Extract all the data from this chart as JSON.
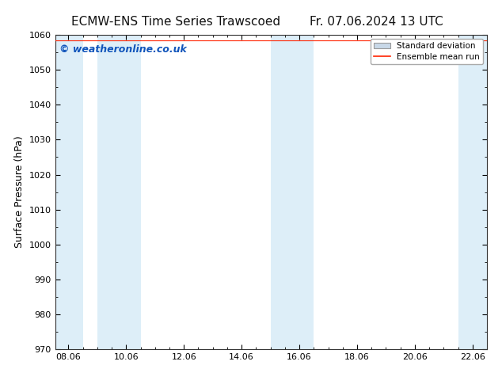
{
  "title_left": "ECMW-ENS Time Series Trawscoed",
  "title_right": "Fr. 07.06.2024 13 UTC",
  "ylabel": "Surface Pressure (hPa)",
  "ylim": [
    970,
    1060
  ],
  "yticks": [
    970,
    980,
    990,
    1000,
    1010,
    1020,
    1030,
    1040,
    1050,
    1060
  ],
  "xlim_days": [
    7.541666,
    22.5
  ],
  "xtick_labels": [
    "08.06",
    "10.06",
    "12.06",
    "14.06",
    "16.06",
    "18.06",
    "20.06",
    "22.06"
  ],
  "xtick_values": [
    8.0,
    10.0,
    12.0,
    14.0,
    16.0,
    18.0,
    20.0,
    22.0
  ],
  "shaded_bands": [
    {
      "x_start": 7.541666,
      "x_end": 8.5
    },
    {
      "x_start": 9.0,
      "x_end": 10.5
    },
    {
      "x_start": 15.0,
      "x_end": 16.5
    },
    {
      "x_start": 21.5,
      "x_end": 22.5
    }
  ],
  "shade_color": "#ddeef8",
  "background_color": "#ffffff",
  "watermark_text": "© weatheronline.co.uk",
  "watermark_color": "#1155bb",
  "watermark_fontsize": 9,
  "legend_std_label": "Standard deviation",
  "legend_ens_label": "Ensemble mean run",
  "legend_std_facecolor": "#c8d8e8",
  "legend_std_edgecolor": "#999999",
  "legend_ens_color": "#ff2200",
  "title_fontsize": 11,
  "ylabel_fontsize": 9,
  "tick_fontsize": 8,
  "mean_y": 1058.5
}
